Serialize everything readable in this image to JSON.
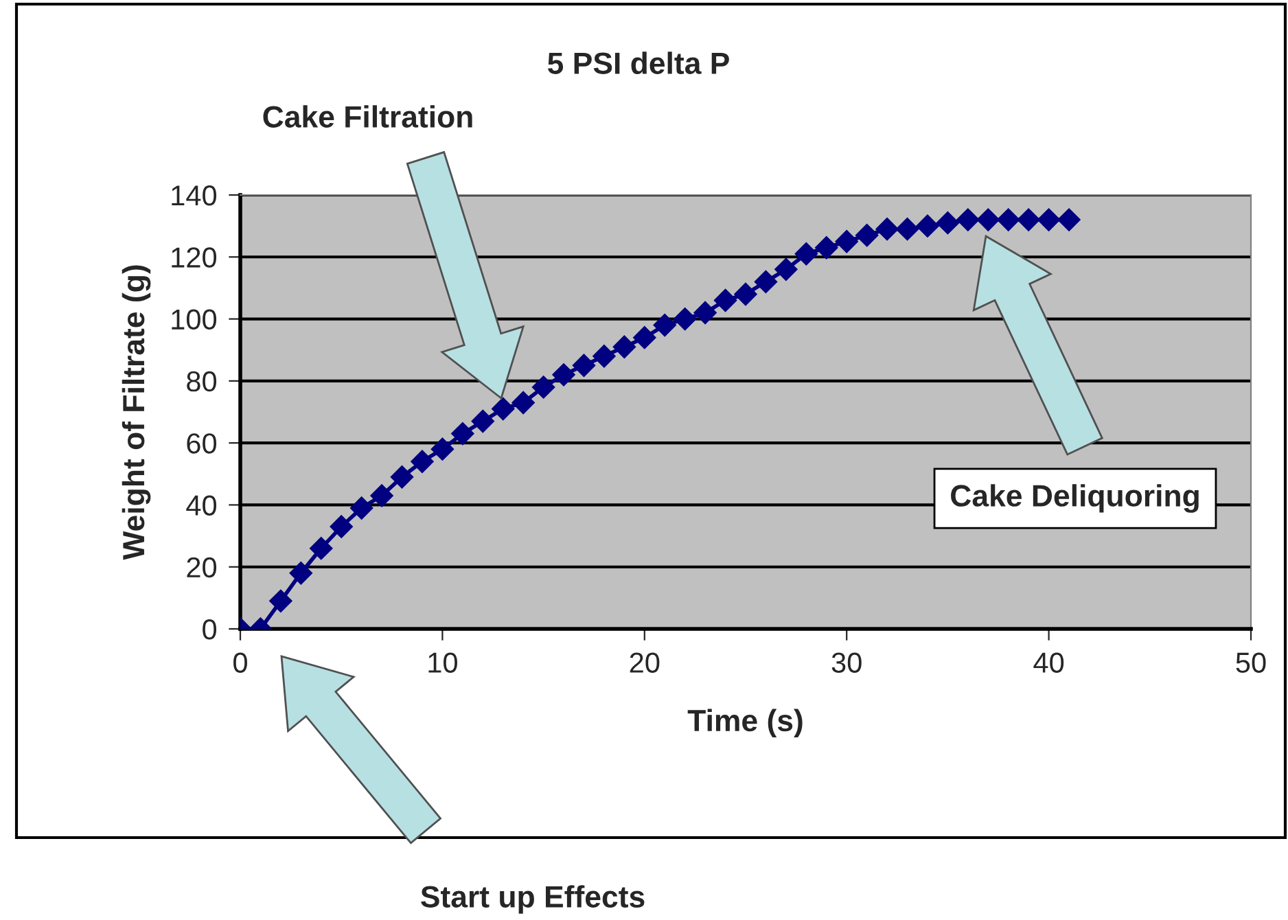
{
  "chart_data": {
    "type": "line",
    "title": "5 PSI delta P",
    "xlabel": "Time (s)",
    "ylabel": "Weight of Filtrate (g)",
    "x": [
      0,
      1,
      2,
      3,
      4,
      5,
      6,
      7,
      8,
      9,
      10,
      11,
      12,
      13,
      14,
      15,
      16,
      17,
      18,
      19,
      20,
      21,
      22,
      23,
      24,
      25,
      26,
      27,
      28,
      29,
      30,
      31,
      32,
      33,
      34,
      35,
      36,
      37,
      38,
      39,
      40,
      41
    ],
    "series": [
      {
        "color": "#000080",
        "values": [
          0,
          0,
          9,
          18,
          26,
          33,
          39,
          43,
          49,
          54,
          58,
          63,
          67,
          71,
          73,
          78,
          82,
          85,
          88,
          91,
          94,
          98,
          100,
          102,
          106,
          108,
          112,
          116,
          121,
          123,
          125,
          127,
          129,
          129,
          130,
          131,
          132,
          132,
          132,
          132,
          132,
          132
        ]
      }
    ],
    "xlim": [
      0,
      50
    ],
    "xticks": [
      0,
      10,
      20,
      30,
      40,
      50
    ],
    "ylim": [
      0,
      140
    ],
    "yticks": [
      0,
      20,
      40,
      60,
      80,
      100,
      120,
      140
    ],
    "grid": "y",
    "marker": "diamond",
    "line_style": "solid",
    "legend": false,
    "annotations": [
      "Cake Filtration",
      "Start up Effects",
      "Cake Deliquoring"
    ]
  }
}
